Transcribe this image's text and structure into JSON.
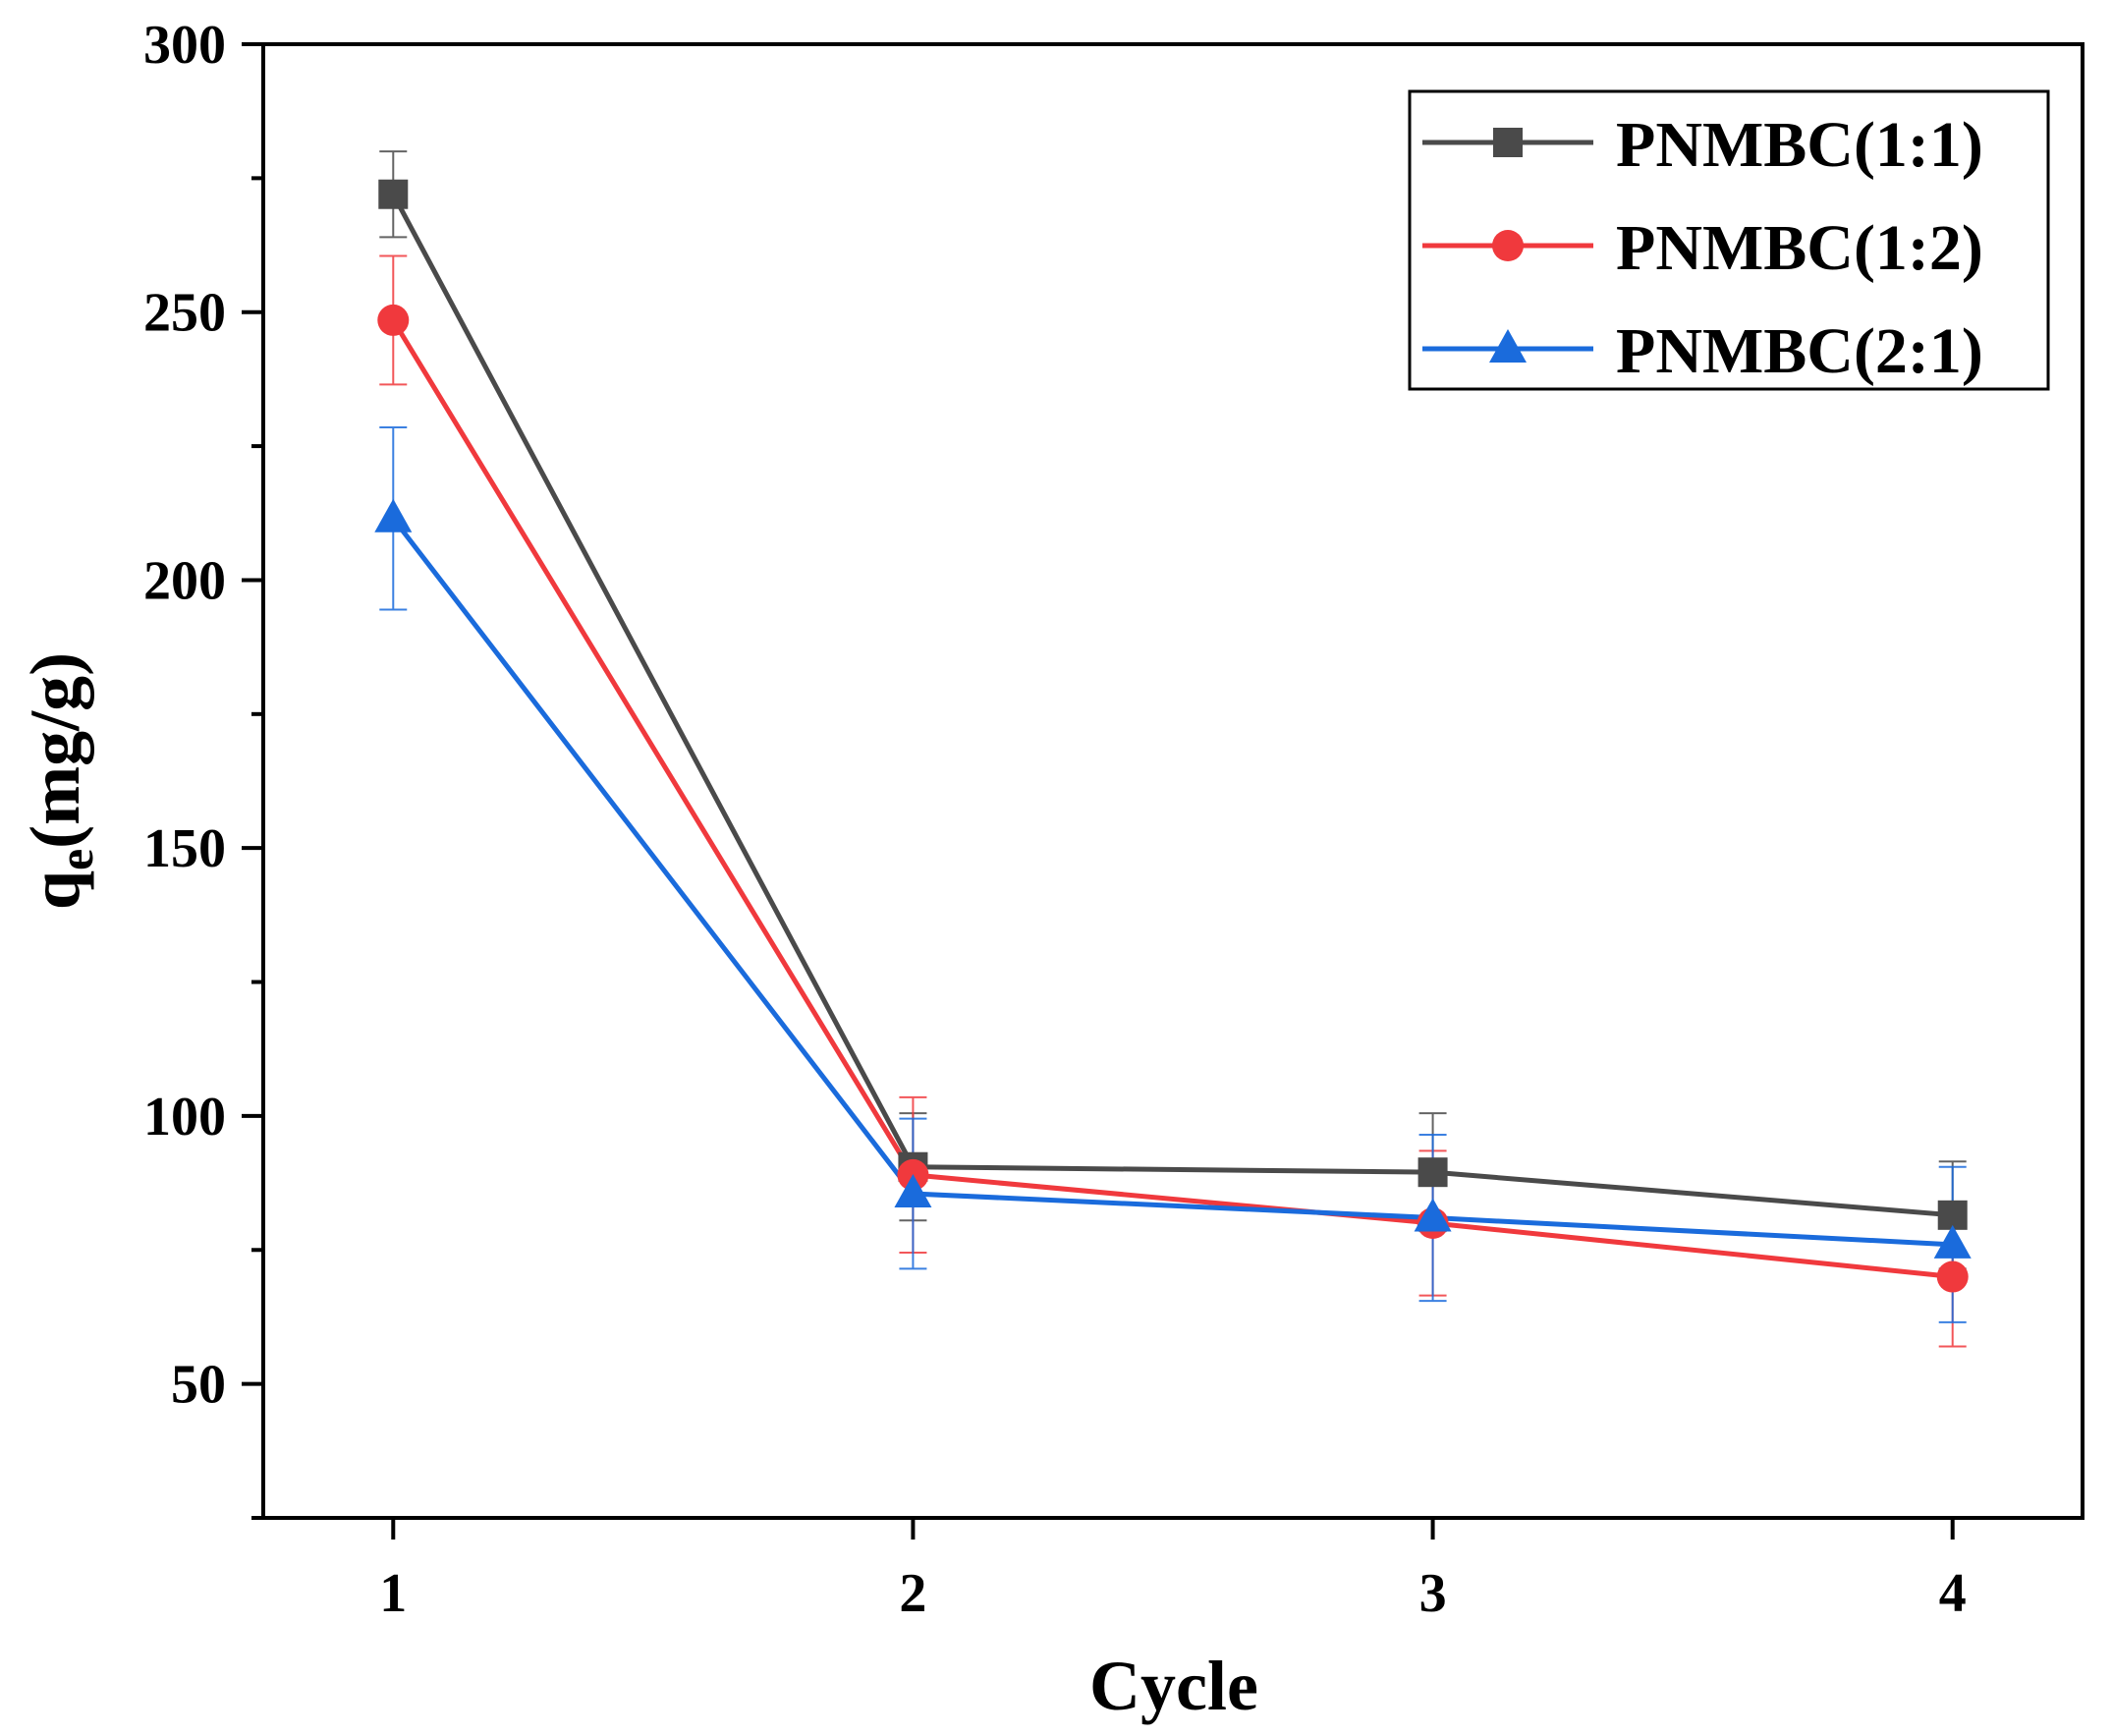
{
  "chart_data": {
    "type": "line",
    "title": "",
    "xlabel": "Cycle",
    "ylabel_main": "q",
    "ylabel_sub": "e",
    "ylabel_unit": "(mg/g)",
    "xlim": [
      0.75,
      4.25
    ],
    "ylim": [
      25,
      300
    ],
    "x": [
      1,
      2,
      3,
      4
    ],
    "xticks": [
      "1",
      "2",
      "3",
      "4"
    ],
    "yticks": [
      50,
      100,
      150,
      200,
      250,
      300
    ],
    "ytick_labels": [
      "50",
      "100",
      "150",
      "200",
      "250",
      "300"
    ],
    "legend_position": "top-right",
    "series": [
      {
        "name": "PNMBC(1:1)",
        "color": "#4a4a4a",
        "marker": "square",
        "values": [
          272,
          90.5,
          89.5,
          81.5
        ],
        "errors": [
          8,
          10,
          11,
          10
        ]
      },
      {
        "name": "PNMBC(1:2)",
        "color": "#f0393d",
        "marker": "circle",
        "values": [
          248.5,
          89,
          80,
          70
        ],
        "errors": [
          12,
          14.5,
          13.5,
          13
        ]
      },
      {
        "name": "PNMBC(2:1)",
        "color": "#1a6bdc",
        "marker": "triangle",
        "values": [
          211.5,
          85.5,
          81,
          76
        ],
        "errors": [
          17,
          14,
          15.5,
          14.5
        ]
      }
    ]
  }
}
